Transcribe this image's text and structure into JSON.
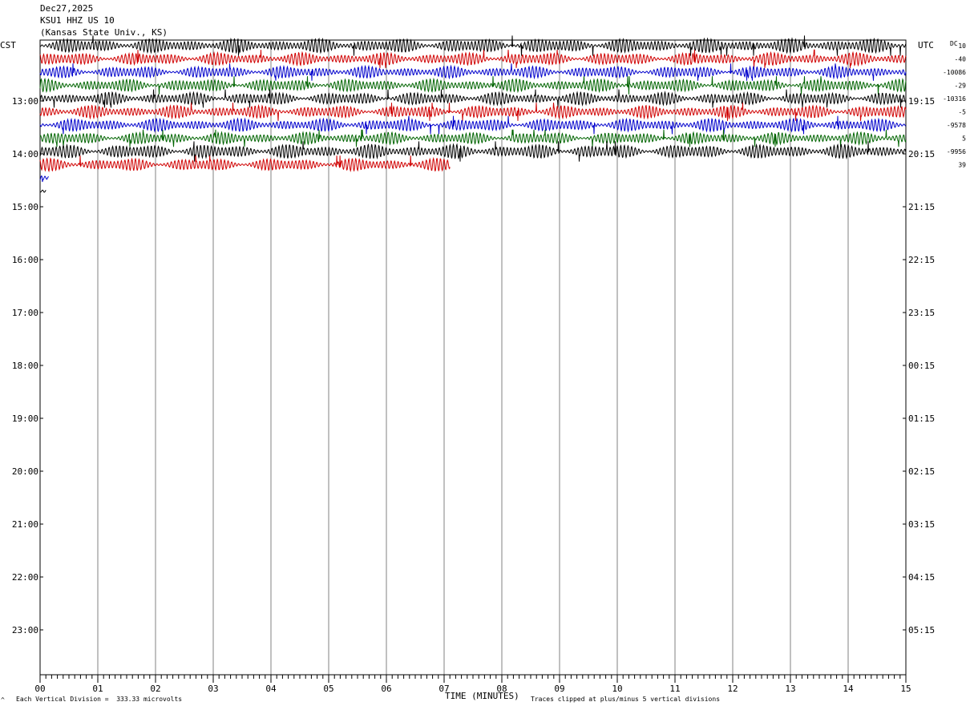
{
  "header": {
    "date": "Dec27,2025",
    "station": "KSU1 HHZ US 10",
    "location": "(Kansas State Univ., KS)"
  },
  "left_axis_title": "CST",
  "right_axis_title": "UTC",
  "dc_label": "DC",
  "footer": {
    "scale_note": "Each Vertical Division =  333.33 microvolts",
    "clip_note": "Traces clipped at plus/minus 5 vertical divisions",
    "corner_mark": "^"
  },
  "colors": {
    "black": "#000000",
    "red": "#d00000",
    "blue": "#0000cc",
    "green": "#006400",
    "grid": "#808080"
  },
  "chart_data": {
    "type": "line",
    "title": "",
    "xlabel": "TIME (MINUTES)",
    "x_ticks": [
      "00",
      "01",
      "02",
      "03",
      "04",
      "05",
      "06",
      "07",
      "08",
      "09",
      "10",
      "11",
      "12",
      "13",
      "14",
      "15"
    ],
    "xlim": [
      0,
      15
    ],
    "left_hour_labels": [
      "13:00",
      "14:00",
      "15:00",
      "16:00",
      "17:00",
      "18:00",
      "19:00",
      "20:00",
      "21:00",
      "22:00",
      "23:00"
    ],
    "right_hour_labels": [
      "19:15",
      "20:15",
      "21:15",
      "22:15",
      "23:15",
      "00:15",
      "01:15",
      "02:15",
      "03:15",
      "04:15",
      "05:15"
    ],
    "rows_per_hour": 4,
    "dc_offsets": [
      "10",
      "-40",
      "-10086",
      "-29",
      "-10316",
      "-5",
      "-9578",
      "5",
      "-9956",
      "39"
    ],
    "color_cycle": [
      "black",
      "red",
      "blue",
      "green"
    ],
    "traces": [
      {
        "row": 0,
        "color": "black",
        "start_min": 0,
        "end_min": 15,
        "amplitude": 1.0
      },
      {
        "row": 1,
        "color": "red",
        "start_min": 0,
        "end_min": 15,
        "amplitude": 0.9
      },
      {
        "row": 2,
        "color": "blue",
        "start_min": 0,
        "end_min": 15,
        "amplitude": 0.85
      },
      {
        "row": 3,
        "color": "green",
        "start_min": 0,
        "end_min": 15,
        "amplitude": 0.9
      },
      {
        "row": 4,
        "color": "black",
        "start_min": 0,
        "end_min": 15,
        "amplitude": 0.9
      },
      {
        "row": 5,
        "color": "red",
        "start_min": 0,
        "end_min": 15,
        "amplitude": 0.9
      },
      {
        "row": 6,
        "color": "blue",
        "start_min": 0,
        "end_min": 15,
        "amplitude": 0.9
      },
      {
        "row": 7,
        "color": "green",
        "start_min": 0,
        "end_min": 15,
        "amplitude": 0.85
      },
      {
        "row": 8,
        "color": "black",
        "start_min": 0,
        "end_min": 15,
        "amplitude": 1.0
      },
      {
        "row": 9,
        "color": "red",
        "start_min": 0,
        "end_min": 7.1,
        "amplitude": 0.9
      },
      {
        "row": 10,
        "color": "blue",
        "start_min": 0,
        "end_min": 0.15,
        "amplitude": 0.4
      },
      {
        "row": 11,
        "color": "black",
        "start_min": 0,
        "end_min": 0.1,
        "amplitude": 0.3
      }
    ]
  }
}
